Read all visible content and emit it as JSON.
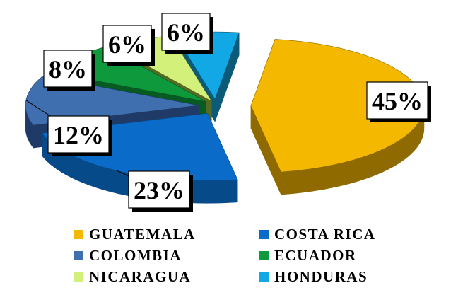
{
  "chart_data": {
    "type": "pie",
    "three_d": true,
    "exploded": true,
    "legend_position": "bottom",
    "slices": [
      {
        "name": "GUATEMALA",
        "value": 45,
        "label": "45%",
        "color": "#F5B800",
        "side_color": "#8E6A00"
      },
      {
        "name": "COSTA RICA",
        "value": 23,
        "label": "23%",
        "color": "#0A6CC8",
        "side_color": "#064A8A"
      },
      {
        "name": "COLOMBIA",
        "value": 12,
        "label": "12%",
        "color": "#3F6FAF",
        "side_color": "#1F3A66"
      },
      {
        "name": "ECUADOR",
        "value": 8,
        "label": "8%",
        "color": "#0E9A3C",
        "side_color": "#075A22"
      },
      {
        "name": "NICARAGUA",
        "value": 6,
        "label": "6%",
        "color": "#D2F07A",
        "side_color": "#556B22"
      },
      {
        "name": "HONDURAS",
        "value": 6,
        "label": "6%",
        "color": "#12A8E6",
        "side_color": "#0B5A77"
      }
    ]
  }
}
